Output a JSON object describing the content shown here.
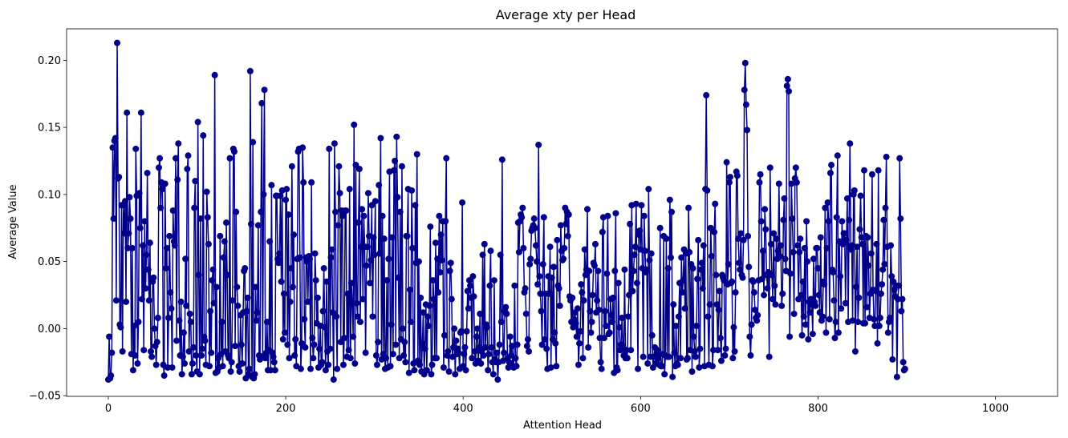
{
  "chart_data": {
    "type": "line",
    "title": "Average xty per Head",
    "xlabel": "Attention Head",
    "ylabel": "Average Value",
    "xlim": [
      -47,
      1070
    ],
    "ylim": [
      -0.0505,
      0.2235
    ],
    "xticks": [
      0,
      200,
      400,
      600,
      800,
      1000
    ],
    "xtick_labels": [
      "0",
      "200",
      "400",
      "600",
      "800",
      "1000"
    ],
    "yticks": [
      -0.05,
      0.0,
      0.05,
      0.1,
      0.15,
      0.2
    ],
    "ytick_labels": [
      "−0.05",
      "0.00",
      "0.05",
      "0.10",
      "0.15",
      "0.20"
    ],
    "grid": false,
    "legend": "none",
    "series": [
      {
        "color": "#00008b",
        "marker": "circle",
        "x_start": 0,
        "x_step": 1,
        "values": [
          -0.038,
          -0.006,
          -0.037,
          -0.035,
          -0.018,
          0.135,
          0.082,
          0.14,
          0.142,
          0.021,
          0.213,
          0.112,
          0.113,
          0.003,
          0.001,
          0.092,
          -0.017,
          0.092,
          0.071,
          0.095,
          0.02,
          0.161,
          0.06,
          0.071,
          0.098,
          0.082,
          -0.019,
          0.06,
          -0.031,
          0.002,
          -0.02,
          0.134,
          0.099,
          -0.026,
          0.005,
          0.101,
          0.075,
          0.161,
          0.022,
          0.062,
          -0.016,
          0.08,
          0.03,
          0.055,
          0.116,
          0.044,
          0.021,
          0.064,
          -0.017,
          -0.021,
          0.035,
          0.038,
          0.0,
          -0.013,
          -0.027,
          -0.01,
          0.008,
          0.12,
          0.127,
          0.09,
          0.109,
          0.104,
          -0.027,
          -0.035,
          0.108,
          0.045,
          0.06,
          -0.029,
          0.008,
          0.069,
          0.027,
          0.015,
          -0.029,
          0.088,
          0.065,
          0.062,
          0.127,
          -0.009,
          0.111,
          0.138,
          0.006,
          -0.02,
          0.02,
          -0.034,
          -0.021,
          -0.003,
          -0.026,
          0.052,
          0.017,
          0.119,
          0.129,
          -0.017,
          0.011,
          0.005,
          -0.034,
          -0.026,
          -0.014,
          0.09,
          0.11,
          -0.02,
          -0.032,
          0.154,
          0.04,
          -0.034,
          0.082,
          -0.02,
          -0.015,
          0.144,
          -0.006,
          -0.009,
          -0.027,
          0.102,
          0.083,
          0.063,
          -0.028,
          0.013,
          -0.018,
          0.036,
          0.044,
          0.019,
          0.189,
          -0.033,
          0.031,
          -0.032,
          -0.022,
          -0.029,
          0.069,
          -0.019,
          0.005,
          -0.028,
          0.053,
          0.065,
          -0.017,
          0.079,
          0.04,
          -0.02,
          -0.022,
          0.127,
          -0.032,
          -0.025,
          0.021,
          0.134,
          0.132,
          -0.013,
          0.087,
          0.031,
          0.017,
          -0.028,
          -0.032,
          0.01,
          -0.012,
          -0.026,
          0.012,
          0.043,
          0.045,
          -0.037,
          0.013,
          0.023,
          -0.034,
          -0.03,
          0.192,
          0.078,
          -0.036,
          0.139,
          -0.037,
          -0.034,
          0.031,
          0.006,
          0.012,
          0.077,
          -0.02,
          -0.023,
          0.087,
          0.168,
          -0.021,
          0.1,
          0.178,
          -0.022,
          -0.018,
          0.005,
          -0.031,
          -0.016,
          0.065,
          -0.031,
          0.107,
          -0.018,
          -0.021,
          -0.025,
          -0.031,
          0.099,
          0.099,
          0.052,
          0.049,
          0.056,
          0.099,
          0.035,
          0.103,
          -0.008,
          0.026,
          -0.003,
          0.096,
          0.104,
          -0.012,
          0.085,
          -0.022,
          0.02,
          0.045,
          0.121,
          0.031,
          0.07,
          -0.02,
          -0.008,
          -0.028,
          0.052,
          0.132,
          0.134,
          0.053,
          -0.03,
          -0.011,
          0.135,
          0.109,
          0.007,
          -0.014,
          0.053,
          0.05,
          0.02,
          0.054,
          0.052,
          -0.03,
          0.109,
          -0.007,
          -0.022,
          -0.012,
          0.056,
          0.036,
          0.004,
          0.023,
          -0.029,
          -0.015,
          0.002,
          -0.027,
          -0.025,
          0.013,
          0.045,
          0.001,
          -0.031,
          0.035,
          -0.017,
          -0.027,
          0.134,
          -0.015,
          0.053,
          0.059,
          0.012,
          -0.038,
          0.138,
          0.087,
          0.009,
          -0.03,
          0.077,
          0.121,
          0.101,
          -0.01,
          0.088,
          0.084,
          -0.027,
          -0.007,
          0.088,
          0.088,
          -0.021,
          0.026,
          -0.016,
          0.104,
          -0.022,
          0.034,
          0.019,
          -0.006,
          0.152,
          -0.026,
          0.122,
          0.019,
          0.009,
          0.079,
          0.119,
          0.005,
          0.061,
          0.089,
          0.022,
          0.084,
          0.061,
          -0.018,
          0.047,
          0.061,
          0.101,
          0.069,
          0.034,
          0.051,
          0.092,
          0.009,
          0.068,
          0.055,
          0.095,
          -0.02,
          -0.027,
          -0.01,
          0.107,
          0.056,
          0.142,
          -0.023,
          0.084,
          -0.019,
          0.067,
          -0.03,
          -0.022,
          0.036,
          -0.029,
          0.052,
          0.117,
          -0.028,
          0.003,
          0.068,
          -0.019,
          0.118,
          0.125,
          -0.012,
          0.143,
          0.098,
          0.038,
          -0.022,
          0.087,
          -0.008,
          0.121,
          0.0,
          -0.02,
          -0.01,
          -0.025,
          0.069,
          0.069,
          0.104,
          -0.033,
          0.029,
          0.005,
          0.103,
          0.06,
          -0.026,
          -0.031,
          0.092,
          0.049,
          0.13,
          -0.024,
          0.05,
          -0.027,
          0.023,
          -0.032,
          -0.011,
          0.012,
          -0.034,
          -0.015,
          0.018,
          -0.031,
          0.009,
          0.002,
          0.017,
          0.076,
          -0.034,
          -0.027,
          0.036,
          0.022,
          -0.022,
          0.064,
          -0.022,
          0.052,
          0.027,
          0.084,
          0.042,
          0.07,
          0.051,
          0.08,
          -0.029,
          -0.005,
          0.08,
          0.127,
          -0.02,
          -0.017,
          -0.032,
          0.043,
          0.049,
          0.022,
          -0.021,
          -0.014,
          0.0,
          -0.034,
          -0.009,
          -0.019,
          -0.015,
          -0.018,
          -0.03,
          -0.003,
          -0.002,
          0.094,
          -0.028,
          -0.019,
          -0.014,
          -0.031,
          -0.002,
          0.028,
          0.015,
          0.036,
          0.032,
          0.023,
          -0.022,
          0.039,
          0.024,
          -0.017,
          -0.026,
          -0.006,
          0.0,
          -0.024,
          -0.014,
          0.011,
          -0.026,
          -0.017,
          0.055,
          -0.02,
          0.063,
          -0.014,
          0.003,
          0.001,
          -0.031,
          -0.019,
          0.032,
          0.058,
          -0.014,
          -0.025,
          -0.034,
          0.036,
          -0.023,
          -0.025,
          -0.018,
          -0.038,
          -0.025,
          -0.012,
          0.055,
          0.005,
          0.126,
          -0.024,
          -0.018,
          0.013,
          0.016,
          0.011,
          -0.022,
          -0.029,
          -0.025,
          -0.006,
          -0.02,
          -0.013,
          -0.028,
          -0.029,
          0.032,
          -0.022,
          -0.028,
          -0.012,
          0.079,
          0.057,
          0.08,
          0.085,
          0.083,
          0.09,
          0.06,
          0.027,
          0.03,
          0.011,
          -0.013,
          -0.008,
          -0.017,
          0.048,
          0.052,
          0.073,
          0.075,
          0.077,
          0.082,
          0.075,
          0.062,
          0.05,
          0.033,
          0.137,
          0.039,
          0.026,
          0.013,
          -0.012,
          0.048,
          0.083,
          -0.008,
          0.026,
          -0.015,
          -0.03,
          0.039,
          0.026,
          0.061,
          -0.029,
          0.038,
          -0.008,
          0.046,
          -0.003,
          -0.011,
          -0.028,
          0.066,
          0.032,
          0.03,
          0.017,
          0.077,
          0.058,
          0.051,
          0.052,
          0.06,
          0.09,
          0.078,
          0.087,
          0.069,
          0.085,
          0.024,
          0.021,
          0.005,
          0.023,
          0.001,
          0.007,
          0.012,
          0.004,
          -0.006,
          0.015,
          -0.027,
          -0.011,
          -0.002,
          0.033,
          0.027,
          -0.022,
          0.021,
          0.059,
          0.04,
          0.044,
          0.089,
          -0.014,
          0.043,
          0.013,
          -0.003,
          0.005,
          0.025,
          0.049,
          0.047,
          0.063,
          0.012,
          0.021,
          0.043,
          0.014,
          -0.007,
          -0.025,
          -0.03,
          0.072,
          0.083,
          -0.007,
          0.013,
          0.002,
          0.041,
          0.084,
          -0.004,
          -0.003,
          0.022,
          0.01,
          0.005,
          0.023,
          -0.033,
          0.043,
          0.086,
          -0.029,
          -0.031,
          0.034,
          0.001,
          -0.016,
          -0.012,
          0.008,
          -0.013,
          -0.02,
          0.044,
          -0.022,
          -0.016,
          -0.022,
          0.009,
          0.025,
          0.078,
          -0.016,
          0.092,
          0.028,
          0.043,
          0.055,
          0.061,
          0.093,
          0.034,
          -0.03,
          0.07,
          0.073,
          0.059,
          0.092,
          0.045,
          -0.021,
          0.084,
          0.058,
          0.042,
          0.044,
          -0.026,
          0.104,
          0.051,
          -0.021,
          0.056,
          -0.005,
          -0.029,
          -0.021,
          -0.014,
          -0.026,
          -0.019,
          -0.016,
          -0.022,
          -0.027,
          0.075,
          -0.028,
          -0.028,
          -0.019,
          0.069,
          -0.034,
          -0.02,
          0.067,
          -0.021,
          0.045,
          -0.021,
          0.096,
          0.053,
          0.087,
          -0.036,
          0.018,
          -0.018,
          -0.028,
          0.002,
          -0.026,
          -0.027,
          0.009,
          0.034,
          -0.022,
          0.053,
          0.027,
          0.036,
          0.059,
          0.015,
          0.056,
          -0.023,
          -0.022,
          0.09,
          0.057,
          -0.016,
          0.048,
          -0.032,
          0.045,
          -0.006,
          -0.017,
          -0.021,
          0.002,
          0.037,
          0.066,
          -0.029,
          -0.015,
          0.044,
          0.049,
          0.03,
          0.062,
          -0.028,
          0.104,
          0.174,
          0.103,
          0.009,
          -0.027,
          0.018,
          0.075,
          0.054,
          -0.028,
          -0.016,
          0.072,
          0.093,
          0.04,
          0.018,
          -0.016,
          0.014,
          0.028,
          -0.007,
          -0.024,
          0.04,
          0.038,
          0.036,
          -0.02,
          -0.015,
          0.124,
          0.033,
          0.048,
          0.109,
          0.113,
          0.034,
          0.035,
          -0.022,
          0.001,
          -0.017,
          0.027,
          0.117,
          0.114,
          0.067,
          0.049,
          0.044,
          0.071,
          0.04,
          0.038,
          0.066,
          0.178,
          0.198,
          0.167,
          0.148,
          0.069,
          0.046,
          -0.006,
          -0.02,
          0.003,
          0.036,
          0.035,
          0.027,
          0.014,
          0.008,
          0.006,
          0.01,
          0.036,
          0.109,
          0.115,
          0.08,
          0.037,
          0.058,
          0.025,
          0.089,
          0.074,
          0.04,
          0.03,
          0.042,
          -0.021,
          0.12,
          0.063,
          0.04,
          0.022,
          0.071,
          0.032,
          0.018,
          0.067,
          0.052,
          0.058,
          0.108,
          0.054,
          0.062,
          0.017,
          0.026,
          0.081,
          0.097,
          0.052,
          0.043,
          0.181,
          0.186,
          0.177,
          -0.006,
          0.041,
          0.108,
          0.082,
          0.057,
          0.011,
          0.112,
          0.12,
          0.109,
          0.062,
          0.022,
          0.057,
          0.067,
          0.025,
          -0.005,
          0.035,
          0.009,
          0.06,
          0.003,
          0.08,
          0.05,
          -0.008,
          0.02,
          0.012,
          0.022,
          0.018,
          -0.004,
          0.052,
          0.02,
          0.017,
          0.06,
          0.06,
          0.045,
          0.025,
          0.012,
          0.068,
          0.006,
          0.009,
          0.035,
          0.033,
          0.09,
          -0.003,
          0.06,
          0.094,
          0.08,
          0.007,
          0.116,
          0.122,
          0.044,
          0.042,
          0.021,
          -0.007,
          0.005,
          0.083,
          0.129,
          -0.003,
          0.065,
          0.039,
          0.015,
          0.08,
          0.063,
          0.071,
          0.071,
          0.019,
          0.066,
          0.097,
          0.005,
          0.081,
          0.138,
          0.059,
          0.062,
          0.006,
          0.1,
          0.103,
          -0.017,
          0.031,
          0.061,
          0.005,
          0.023,
          0.074,
          0.099,
          0.068,
          0.063,
          0.004,
          0.118,
          0.004,
          0.069,
          0.016,
          0.068,
          0.047,
          0.008,
          0.026,
          0.056,
          0.115,
          0.029,
          0.007,
          0.002,
          0.028,
          0.063,
          -0.011,
          0.118,
          0.002,
          0.008,
          0.026,
          0.033,
          0.044,
          0.081,
          0.048,
          0.09,
          0.128,
          0.061,
          -0.003,
          0.005,
          0.008,
          0.062,
          0.039,
          -0.023,
          0.035,
          0.029,
          0.024,
          0.032,
          -0.036,
          0.022,
          0.032,
          0.127,
          0.082,
          0.013,
          0.022,
          -0.025,
          -0.031,
          -0.03
        ]
      }
    ]
  }
}
